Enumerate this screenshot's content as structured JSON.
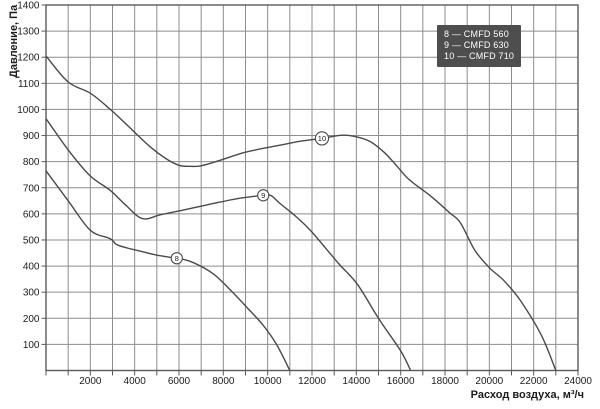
{
  "chart_data": {
    "type": "line",
    "title": "",
    "xlabel": "Расход воздуха, м³/ч",
    "ylabel": "Давление, Па",
    "xlim": [
      0,
      24000
    ],
    "ylim": [
      0,
      1400
    ],
    "grid": true,
    "x_grid_step": 1000,
    "y_grid_step": 100,
    "x_ticks": [
      2000,
      4000,
      6000,
      8000,
      10000,
      12000,
      14000,
      16000,
      18000,
      20000,
      22000,
      24000
    ],
    "y_ticks": [
      100,
      200,
      300,
      400,
      500,
      600,
      700,
      800,
      900,
      1000,
      1100,
      1200,
      1300,
      1400
    ],
    "legend_position": "top-right-inside",
    "legend": [
      "8 — CMFD 560",
      "9 — CMFD 630",
      "10 — CMFD 710"
    ],
    "series": [
      {
        "id": "8",
        "name": "CMFD 560",
        "marker": {
          "label": "8",
          "x": 5900,
          "y": 430
        },
        "points": [
          [
            0,
            765
          ],
          [
            1000,
            650
          ],
          [
            2000,
            537
          ],
          [
            2900,
            505
          ],
          [
            3250,
            480
          ],
          [
            4350,
            455
          ],
          [
            5100,
            440
          ],
          [
            5900,
            430
          ],
          [
            6600,
            415
          ],
          [
            7550,
            370
          ],
          [
            8300,
            310
          ],
          [
            9050,
            243
          ],
          [
            9800,
            173
          ],
          [
            10400,
            100
          ],
          [
            11000,
            0
          ]
        ]
      },
      {
        "id": "9",
        "name": "CMFD 630",
        "marker": {
          "label": "9",
          "x": 9800,
          "y": 671
        },
        "points": [
          [
            0,
            965
          ],
          [
            1000,
            845
          ],
          [
            2000,
            745
          ],
          [
            2900,
            690
          ],
          [
            3600,
            633
          ],
          [
            4350,
            582
          ],
          [
            5200,
            597
          ],
          [
            6500,
            620
          ],
          [
            7850,
            645
          ],
          [
            8750,
            660
          ],
          [
            9800,
            671
          ],
          [
            10150,
            670
          ],
          [
            10550,
            640
          ],
          [
            11300,
            588
          ],
          [
            12000,
            530
          ],
          [
            13200,
            410
          ],
          [
            14050,
            330
          ],
          [
            15000,
            200
          ],
          [
            16000,
            75
          ],
          [
            16450,
            0
          ]
        ]
      },
      {
        "id": "10",
        "name": "CMFD 710",
        "marker": {
          "label": "10",
          "x": 12450,
          "y": 889
        },
        "points": [
          [
            0,
            1205
          ],
          [
            1000,
            1105
          ],
          [
            2000,
            1062
          ],
          [
            2900,
            1000
          ],
          [
            3600,
            945
          ],
          [
            4700,
            857
          ],
          [
            5400,
            812
          ],
          [
            6000,
            786
          ],
          [
            6500,
            782
          ],
          [
            7000,
            784
          ],
          [
            7850,
            805
          ],
          [
            9000,
            836
          ],
          [
            10550,
            863
          ],
          [
            11450,
            878
          ],
          [
            12450,
            889
          ],
          [
            13300,
            901
          ],
          [
            13900,
            897
          ],
          [
            14600,
            878
          ],
          [
            15250,
            836
          ],
          [
            15800,
            786
          ],
          [
            16400,
            730
          ],
          [
            17400,
            665
          ],
          [
            18200,
            605
          ],
          [
            18700,
            565
          ],
          [
            19350,
            460
          ],
          [
            20050,
            390
          ],
          [
            20650,
            345
          ],
          [
            21400,
            268
          ],
          [
            22350,
            135
          ],
          [
            23000,
            0
          ]
        ]
      }
    ]
  },
  "colors": {
    "background": "#ffffff",
    "grid": "#8c8c8c",
    "frame": "#5a5a5a",
    "curve": "#4a4a4a",
    "text": "#1c1c1c",
    "legend_bg": "#4e4e4e",
    "legend_text": "#ffffff"
  }
}
